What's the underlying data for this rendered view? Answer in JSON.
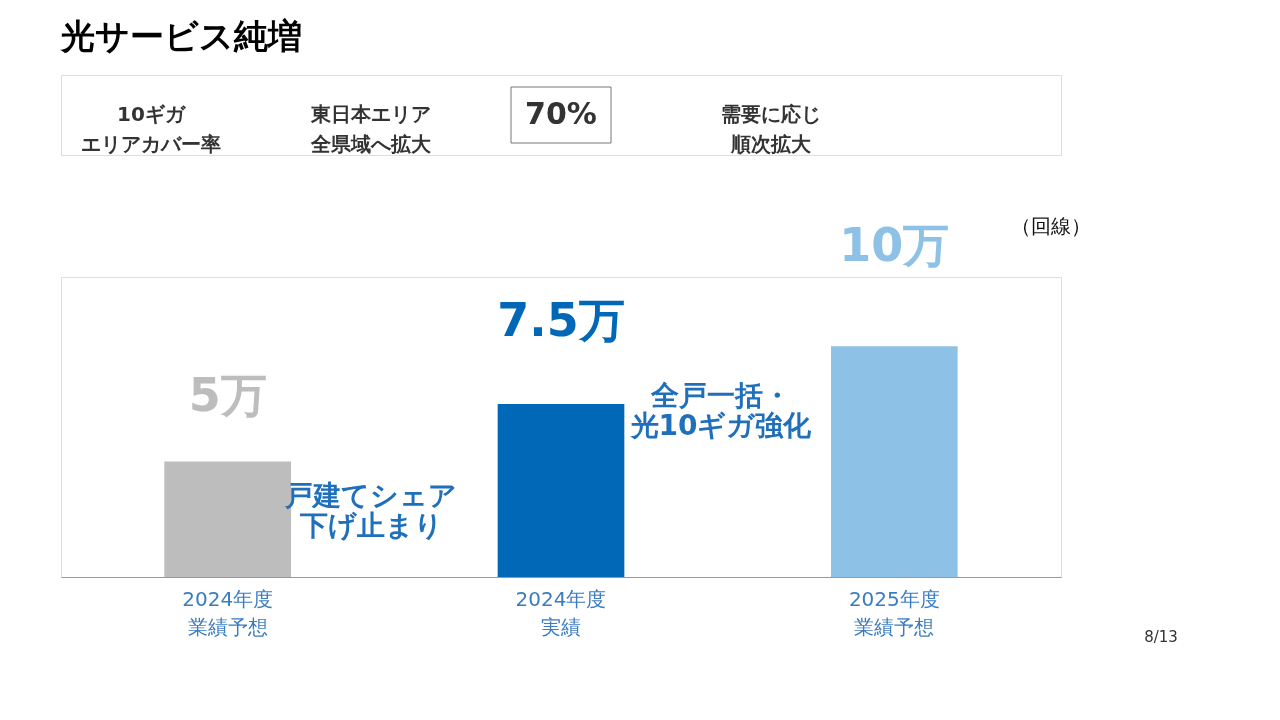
{
  "chart_data": {
    "type": "bar",
    "title": "光サービス純増",
    "categories": [
      "2024年度業績予想",
      "2024年度実績",
      "2025年度業績予想"
    ],
    "values": [
      5,
      7.5,
      10
    ],
    "colors": [
      "#bdbdbd",
      "#0068b7",
      "#8ec1e6"
    ],
    "value_labels": [
      "5万",
      "7.5万",
      "10万"
    ],
    "grid": false,
    "annotations": [
      "10ギガエリアカバー率",
      "東日本エリア全県域へ拡大",
      "70%",
      "需要に応じ順次拡大",
      "戸建てシェア下げ止まり",
      "全戸一括・光10ギガ強化",
      "8/13",
      "（回線）"
    ]
  }
}
